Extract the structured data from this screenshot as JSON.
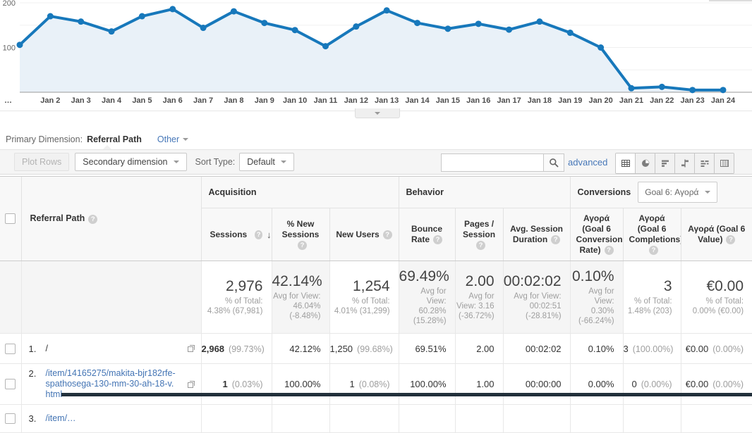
{
  "colors": {
    "chart_line": "#1778bb",
    "chart_fill": "#e9f1f8",
    "link_blue": "#4677b8"
  },
  "chart_data": {
    "type": "line",
    "series_name": "Sessions",
    "categories": [
      "…",
      "Jan 2",
      "Jan 3",
      "Jan 4",
      "Jan 5",
      "Jan 6",
      "Jan 7",
      "Jan 8",
      "Jan 9",
      "Jan 10",
      "Jan 11",
      "Jan 12",
      "Jan 13",
      "Jan 14",
      "Jan 15",
      "Jan 16",
      "Jan 17",
      "Jan 18",
      "Jan 19",
      "Jan 20",
      "Jan 21",
      "Jan 22",
      "Jan 23",
      "Jan 24"
    ],
    "values": [
      106,
      170,
      158,
      136,
      170,
      186,
      144,
      181,
      155,
      139,
      103,
      147,
      183,
      155,
      142,
      153,
      140,
      158,
      133,
      100,
      9,
      12,
      5,
      5
    ],
    "ylim": [
      0,
      200
    ],
    "ytick_labels": [
      "100",
      "200"
    ],
    "gridline_values": [
      50,
      100,
      150,
      200
    ],
    "grid": true,
    "legend_position": "none"
  },
  "primary_dimension": {
    "label": "Primary Dimension:",
    "selected": "Referral Path",
    "other_label": "Other"
  },
  "toolbar": {
    "plot_rows_label": "Plot Rows",
    "secondary_dimension_label": "Secondary dimension",
    "sort_type_label": "Sort Type:",
    "sort_type_value": "Default",
    "search_value": "",
    "advanced_label": "advanced",
    "view_buttons": [
      {
        "icon": "table-view-icon",
        "active": true
      },
      {
        "icon": "percentage-view-icon",
        "active": false
      },
      {
        "icon": "performance-view-icon",
        "active": false
      },
      {
        "icon": "comparison-view-icon",
        "active": false
      },
      {
        "icon": "term-cloud-view-icon",
        "active": false
      },
      {
        "icon": "pivot-view-icon",
        "active": false
      }
    ]
  },
  "table": {
    "group_headers": {
      "acquisition": "Acquisition",
      "behavior": "Behavior",
      "conversions": "Conversions",
      "goal_selector": "Goal 6: Αγορά"
    },
    "columns": [
      {
        "label": "Referral Path",
        "help": true
      },
      {
        "label": "Sessions",
        "help": true,
        "sorted": true
      },
      {
        "label": "% New Sessions",
        "help": true
      },
      {
        "label": "New Users",
        "help": true
      },
      {
        "label": "Bounce Rate",
        "help": true
      },
      {
        "label": "Pages / Session",
        "help": true
      },
      {
        "label": "Avg. Session Duration",
        "help": true
      },
      {
        "label": "Αγορά (Goal 6 Conversion Rate)",
        "help": true
      },
      {
        "label": "Αγορά (Goal 6 Completions)",
        "help": true
      },
      {
        "label": "Αγορά (Goal 6 Value)",
        "help": true
      }
    ],
    "totals": [
      {
        "main": "2,976",
        "sub": "% of Total: 4.38% (67,981)",
        "shaded": false
      },
      {
        "main": "42.14%",
        "sub": "Avg for View: 46.04% (-8.48%)",
        "shaded": true
      },
      {
        "main": "1,254",
        "sub": "% of Total: 4.01% (31,299)",
        "shaded": false
      },
      {
        "main": "69.49%",
        "sub": "Avg for View: 60.28% (15.28%)",
        "shaded": true
      },
      {
        "main": "2.00",
        "sub": "Avg for View: 3.16 (-36.72%)",
        "shaded": true
      },
      {
        "main": "00:02:02",
        "sub": "Avg for View: 00:02:51 (-28.81%)",
        "shaded": true
      },
      {
        "main": "0.10%",
        "sub": "Avg for View: 0.30% (-66.24%)",
        "shaded": true
      },
      {
        "main": "3",
        "sub": "% of Total: 1.48% (203)",
        "shaded": false
      },
      {
        "main": "€0.00",
        "sub": "% of Total: 0.00% (€0.00)",
        "shaded": false
      }
    ],
    "rows": [
      {
        "index": "1.",
        "path": "/",
        "is_link": false,
        "height": 43,
        "cells": [
          {
            "main": "2,968",
            "sub": "(99.73%)"
          },
          {
            "main": "42.12%",
            "sub": ""
          },
          {
            "main": "1,250",
            "sub": "(99.68%)"
          },
          {
            "main": "69.51%",
            "sub": ""
          },
          {
            "main": "2.00",
            "sub": ""
          },
          {
            "main": "00:02:02",
            "sub": ""
          },
          {
            "main": "0.10%",
            "sub": ""
          },
          {
            "main": "3",
            "sub": "(100.00%)"
          },
          {
            "main": "€0.00",
            "sub": "(0.00%)"
          }
        ]
      },
      {
        "index": "2.",
        "path": "/item/14165275/makita-bjr182rfe-spathosega-130-mm-30-ah-18-v.html",
        "is_link": true,
        "height": 50,
        "cells": [
          {
            "main": "1",
            "sub": "(0.03%)"
          },
          {
            "main": "100.00%",
            "sub": ""
          },
          {
            "main": "1",
            "sub": "(0.08%)"
          },
          {
            "main": "100.00%",
            "sub": ""
          },
          {
            "main": "1.00",
            "sub": ""
          },
          {
            "main": "00:00:00",
            "sub": ""
          },
          {
            "main": "0.00%",
            "sub": ""
          },
          {
            "main": "0",
            "sub": "(0.00%)"
          },
          {
            "main": "€0.00",
            "sub": "(0.00%)"
          }
        ]
      },
      {
        "index": "3.",
        "path": "/item/…",
        "is_link": true,
        "height": 40,
        "clipped": true,
        "cells": [
          {
            "main": "",
            "sub": ""
          },
          {
            "main": "",
            "sub": ""
          },
          {
            "main": "",
            "sub": ""
          },
          {
            "main": "",
            "sub": ""
          },
          {
            "main": "",
            "sub": ""
          },
          {
            "main": "",
            "sub": ""
          },
          {
            "main": "",
            "sub": ""
          },
          {
            "main": "",
            "sub": ""
          },
          {
            "main": "",
            "sub": ""
          }
        ]
      }
    ]
  }
}
